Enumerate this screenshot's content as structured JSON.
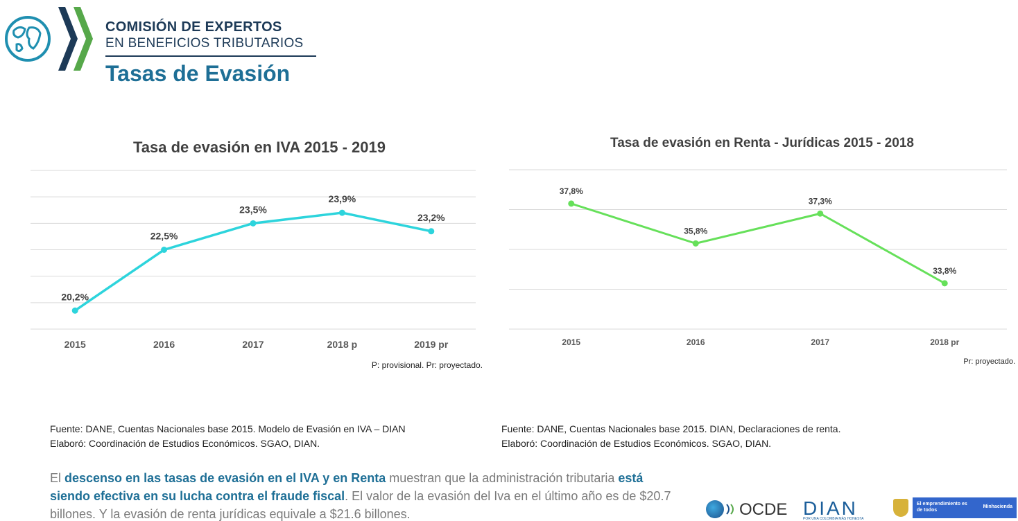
{
  "header": {
    "org_line1": "COMISIÓN DE EXPERTOS",
    "org_line2": "EN BENEFICIOS TRIBUTARIOS",
    "title": "Tasas de Evasión",
    "colors": {
      "brand_dark": "#1d3a57",
      "brand_blue": "#1e6f96",
      "globe": "#1f8fb0",
      "chevron_dark": "#1d3a57",
      "chevron_green": "#56a84a"
    }
  },
  "chart_data": [
    {
      "type": "line",
      "title": "Tasa de evasión en IVA 2015 - 2019",
      "categories": [
        "2015",
        "2016",
        "2017",
        "2018 p",
        "2019 pr"
      ],
      "series": [
        {
          "values": [
            20.2,
            22.5,
            23.5,
            23.9,
            23.2
          ],
          "color": "#2dd4dc"
        }
      ],
      "data_labels": [
        "20,2%",
        "22,5%",
        "23,5%",
        "23,9%",
        "23,2%"
      ],
      "ylim": [
        19.5,
        25.5
      ],
      "grid": true,
      "legend": "none",
      "note": "P: provisional.  Pr: proyectado."
    },
    {
      "type": "line",
      "title": "Tasa de evasión en Renta - Jurídicas 2015 - 2018",
      "categories": [
        "2015",
        "2016",
        "2017",
        "2018 pr"
      ],
      "series": [
        {
          "values": [
            37.8,
            35.8,
            37.3,
            33.8
          ],
          "color": "#66e05a"
        }
      ],
      "data_labels": [
        "37,8%",
        "35,8%",
        "37,3%",
        "33,8%"
      ],
      "ylim": [
        31.5,
        39.5
      ],
      "grid": true,
      "legend": "none",
      "note": "Pr: proyectado."
    }
  ],
  "sources": {
    "left_line1": "Fuente: DANE, Cuentas Nacionales base 2015. Modelo de Evasión en IVA – DIAN",
    "left_line2": "Elaboró: Coordinación de Estudios Económicos. SGAO, DIAN.",
    "right_line1": "Fuente: DANE, Cuentas Nacionales base 2015. DIAN, Declaraciones de renta.",
    "right_line2": "Elaboró: Coordinación de Estudios Económicos. SGAO, DIAN."
  },
  "summary": {
    "p1": "El ",
    "h1": "descenso en las tasas de evasión en el IVA y en Renta",
    "p2": " muestran que la administración tributaria ",
    "h2": "está siendo efectiva en su lucha contra el fraude fiscal",
    "p3": ".  El valor de la evasión del Iva en el último año es de $20.7 billones. Y la evasión de renta jurídicas equivale a $21.6 billones."
  },
  "logos": {
    "ocde": "OCDE",
    "dian": "DIAN",
    "dian_tagline": "POR UNA COLOMBIA MÁS HONESTA",
    "badge_text": "El emprendimiento es de todos",
    "badge_brand": "Minhacienda",
    "badge_color": "#3366cc"
  }
}
